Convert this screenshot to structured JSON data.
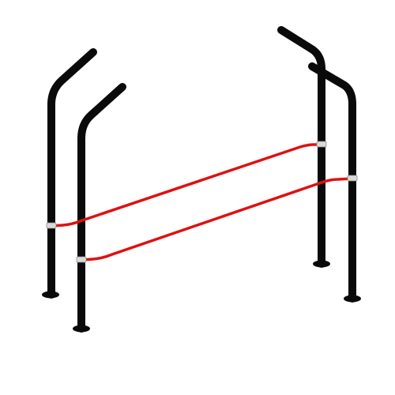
{
  "image": {
    "subject": "",
    "colors": {
      "background": "#ffffff",
      "post": "#0a0a0a",
      "rail": "#e01010",
      "clamp": "#d9d9d9"
    }
  }
}
